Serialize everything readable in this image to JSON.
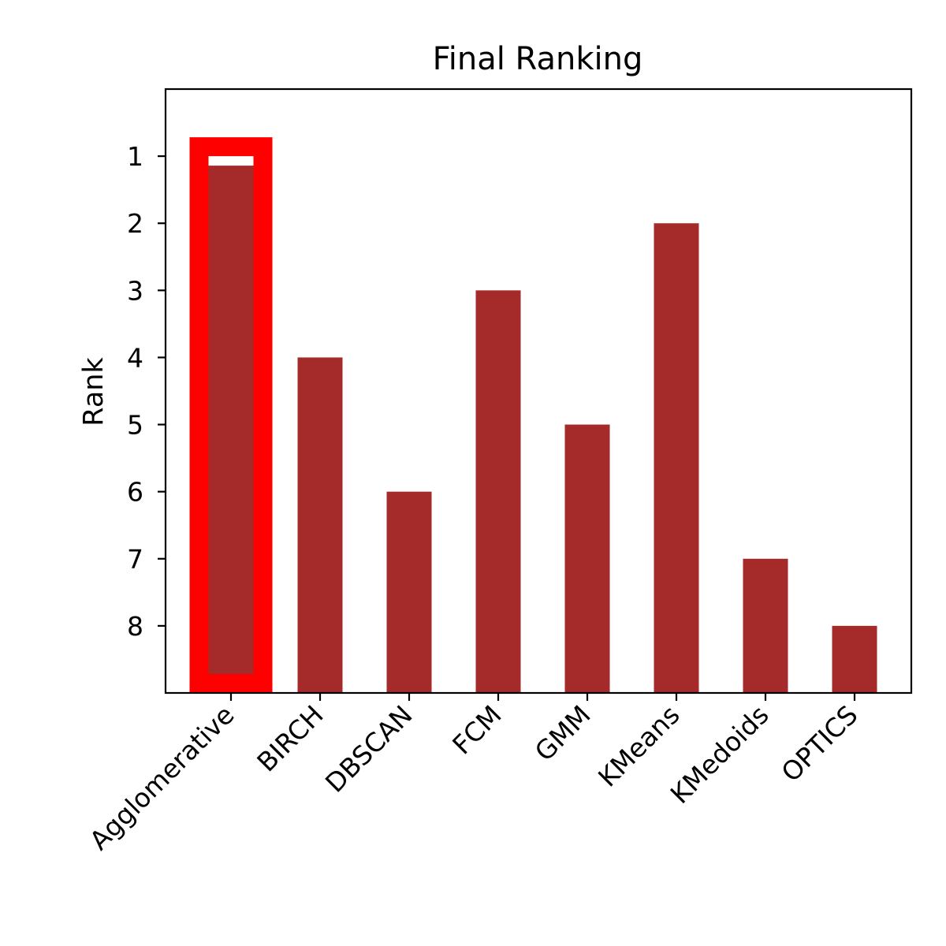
{
  "chart_data": {
    "type": "bar",
    "title": "Final Ranking",
    "xlabel": "",
    "ylabel": "Rank",
    "categories": [
      "Agglomerative",
      "BIRCH",
      "DBSCAN",
      "FCM",
      "GMM",
      "KMeans",
      "KMedoids",
      "OPTICS"
    ],
    "values": [
      1,
      4,
      6,
      3,
      5,
      2,
      7,
      8
    ],
    "y_ticks": [
      "1",
      "2",
      "3",
      "4",
      "5",
      "6",
      "7",
      "8"
    ],
    "ylim": [
      0,
      9
    ],
    "y_inverted": true,
    "bar_color": "#a52a2a",
    "highlight": {
      "category": "Agglomerative",
      "outline_color": "#ff0000"
    },
    "grid": false,
    "legend": "none"
  }
}
